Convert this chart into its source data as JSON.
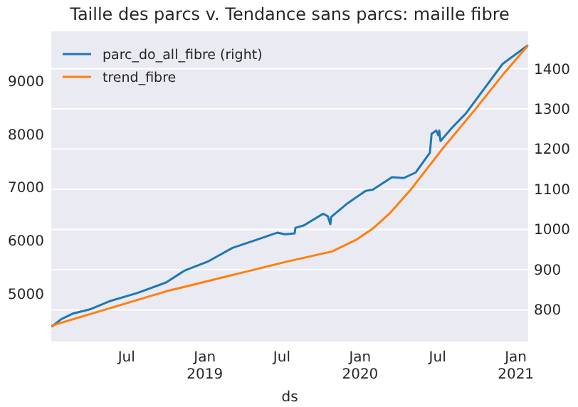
{
  "chart_data": {
    "type": "line",
    "title": "Taille des parcs v. Tendance sans parcs: maille fibre",
    "xlabel": "ds",
    "xlim": [
      "2018-01-05",
      "2021-01-30"
    ],
    "xticks": [
      {
        "value": "2018-07-01",
        "label": "Jul"
      },
      {
        "value": "2019-01-01",
        "label": "Jan\n2019"
      },
      {
        "value": "2019-07-01",
        "label": "Jul"
      },
      {
        "value": "2020-01-01",
        "label": "Jan\n2020"
      },
      {
        "value": "2020-07-01",
        "label": "Jul"
      },
      {
        "value": "2021-01-01",
        "label": "Jan\n2021"
      }
    ],
    "ylim": [
      4110,
      9930
    ],
    "yticks": [
      5000,
      6000,
      7000,
      8000,
      9000
    ],
    "y2lim": [
      721,
      1493
    ],
    "y2ticks": [
      800,
      900,
      1000,
      1100,
      1200,
      1300,
      1400
    ],
    "grid": "y2",
    "legend": "top left",
    "line_style": "solid",
    "series": [
      {
        "name": "parc_do_all_fibre (right)",
        "color": "#1f77b4",
        "axis": "y2",
        "x": [
          "2018-01-07",
          "2018-01-29",
          "2018-02-26",
          "2018-04-06",
          "2018-05-21",
          "2018-07-27",
          "2018-10-02",
          "2018-11-15",
          "2019-01-10",
          "2019-03-07",
          "2019-05-02",
          "2019-06-21",
          "2019-07-08",
          "2019-07-31",
          "2019-08-02",
          "2019-08-22",
          "2019-10-06",
          "2019-10-17",
          "2019-10-23",
          "2019-10-25",
          "2019-11-30",
          "2020-01-14",
          "2020-01-31",
          "2020-03-16",
          "2020-04-13",
          "2020-05-11",
          "2020-06-13",
          "2020-06-17",
          "2020-06-28",
          "2020-07-03",
          "2020-07-05",
          "2020-07-08",
          "2020-08-03",
          "2020-09-05",
          "2020-10-20",
          "2020-12-01",
          "2021-01-28"
        ],
        "values": [
          759,
          777,
          791,
          801,
          821,
          842,
          868,
          898,
          921,
          954,
          974,
          992,
          988,
          990,
          1004,
          1010,
          1039,
          1033,
          1013,
          1031,
          1063,
          1096,
          1099,
          1130,
          1128,
          1142,
          1191,
          1238,
          1246,
          1234,
          1246,
          1220,
          1252,
          1288,
          1352,
          1412,
          1457
        ]
      },
      {
        "name": "trend_fibre",
        "color": "#ff7f0e",
        "x": [
          "2018-01-05",
          "2018-10-01",
          "2019-07-08",
          "2019-10-27",
          "2019-12-23",
          "2020-01-31",
          "2020-03-10",
          "2020-04-29",
          "2020-07-11",
          "2020-09-27",
          "2020-12-03",
          "2021-01-28"
        ],
        "values": [
          4405,
          5050,
          5600,
          5800,
          6020,
          6230,
          6510,
          6960,
          7710,
          8460,
          9130,
          9650
        ]
      }
    ]
  }
}
